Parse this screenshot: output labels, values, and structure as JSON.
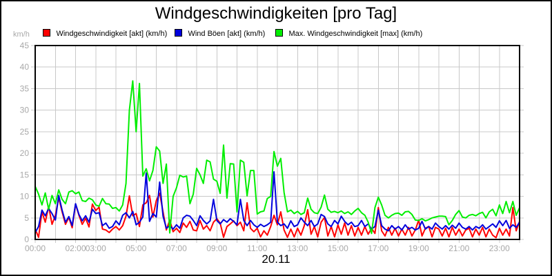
{
  "chart_data": {
    "type": "line",
    "title": "Windgeschwindigkeiten [pro Tag]",
    "ylabel": "km/h",
    "xlabel": "",
    "date_label": "20.11",
    "ylim": [
      0,
      45
    ],
    "xlim_hours": [
      0,
      24
    ],
    "grid": "on",
    "legend_position": "top",
    "sample_interval_minutes": 10,
    "y_ticks": [
      0,
      5,
      10,
      15,
      20,
      25,
      30,
      35,
      40,
      45
    ],
    "x_ticks": [
      {
        "hour": 0,
        "label": "00:00"
      },
      {
        "hour": 2,
        "label": "02:00"
      },
      {
        "hour": 3,
        "label": "03:00"
      },
      {
        "hour": 5,
        "label": "05:00"
      },
      {
        "hour": 7,
        "label": "07:00"
      },
      {
        "hour": 9,
        "label": "09:00"
      },
      {
        "hour": 11,
        "label": "11:00"
      },
      {
        "hour": 13,
        "label": "13:00"
      },
      {
        "hour": 15,
        "label": "15:00"
      },
      {
        "hour": 17,
        "label": "17:00"
      },
      {
        "hour": 19,
        "label": "19:00"
      },
      {
        "hour": 21,
        "label": "21:00"
      },
      {
        "hour": 23,
        "label": "23:00"
      }
    ],
    "colors": {
      "grid": "#c8c8c8",
      "axis_text": "#a8a8a8",
      "frame": "#000000"
    },
    "series": [
      {
        "name": "Windgeschwindigkeit [akt] (km/h)",
        "color": "#ff0000",
        "values": [
          2.4,
          0.5,
          6.4,
          4.0,
          7.7,
          3.5,
          5.6,
          9.7,
          6.4,
          3.5,
          5.1,
          2.7,
          8.2,
          5.6,
          3.5,
          4.9,
          2.9,
          8.2,
          6.7,
          7.5,
          2.4,
          2.2,
          1.6,
          2.4,
          3.0,
          2.2,
          3.2,
          5.4,
          10.1,
          5.5,
          6.0,
          3.0,
          8.0,
          8.5,
          10.2,
          5.2,
          9.0,
          10.7,
          6.4,
          2.2,
          4.5,
          1.8,
          2.6,
          1.6,
          3.8,
          2.8,
          4.2,
          2.2,
          2.0,
          4.4,
          2.4,
          3.2,
          2.0,
          4.0,
          4.8,
          3.8,
          0.5,
          3.0,
          3.6,
          4.3,
          3.2,
          4.0,
          2.0,
          8.5,
          2.6,
          1.8,
          2.6,
          0.6,
          2.0,
          1.0,
          3.0,
          5.6,
          3.4,
          6.4,
          2.2,
          0.5,
          2.4,
          0.6,
          2.6,
          1.0,
          3.2,
          6.9,
          1.2,
          3.0,
          0.6,
          4.0,
          5.1,
          0.8,
          3.0,
          0.6,
          3.4,
          1.2,
          3.8,
          1.0,
          3.2,
          0.8,
          2.8,
          1.0,
          3.0,
          1.2,
          2.6,
          1.4,
          7.4,
          2.0,
          0.8,
          2.8,
          1.0,
          2.6,
          0.8,
          2.4,
          1.0,
          2.8,
          0.8,
          2.2,
          4.5,
          0.8,
          2.6,
          3.0,
          0.6,
          2.8,
          2.4,
          0.8,
          2.6,
          0.6,
          2.8,
          1.0,
          2.4,
          0.8,
          2.2,
          2.6,
          0.6,
          2.4,
          1.0,
          2.8,
          0.6,
          2.4,
          1.0,
          0.4,
          2.6,
          1.0,
          2.4,
          0.8,
          7.4,
          2.0,
          4.2
        ]
      },
      {
        "name": "Wind Böen [akt] (km/h)",
        "color": "#0000dd",
        "values": [
          1.6,
          3.0,
          6.8,
          5.5,
          7.2,
          6.0,
          4.5,
          10.2,
          6.8,
          4.0,
          5.3,
          3.2,
          8.3,
          5.8,
          4.3,
          5.5,
          4.0,
          7.0,
          6.0,
          6.2,
          3.2,
          3.8,
          2.6,
          3.0,
          4.3,
          3.4,
          5.6,
          6.2,
          5.0,
          6.5,
          3.4,
          4.0,
          5.2,
          15.4,
          4.2,
          6.0,
          5.2,
          13.3,
          5.4,
          2.6,
          3.2,
          2.4,
          3.4,
          2.6,
          5.0,
          5.6,
          5.4,
          4.4,
          3.2,
          5.5,
          4.4,
          3.6,
          4.3,
          9.3,
          4.4,
          3.6,
          4.6,
          4.0,
          4.8,
          4.2,
          3.4,
          9.3,
          4.4,
          3.2,
          4.4,
          3.4,
          2.8,
          3.5,
          3.0,
          3.4,
          4.0,
          15.7,
          4.0,
          3.2,
          3.6,
          2.6,
          4.3,
          3.0,
          3.4,
          5.0,
          4.0,
          3.2,
          4.4,
          3.0,
          3.6,
          5.8,
          5.3,
          3.6,
          3.0,
          4.4,
          3.6,
          5.4,
          4.2,
          3.4,
          4.0,
          3.0,
          3.2,
          4.4,
          3.0,
          3.6,
          2.4,
          3.0,
          6.8,
          3.2,
          2.4,
          2.0,
          3.2,
          2.4,
          3.0,
          2.2,
          3.4,
          2.4,
          2.8,
          2.2,
          2.6,
          4.2,
          2.4,
          3.0,
          2.4,
          3.8,
          3.0,
          2.4,
          3.2,
          2.4,
          3.3,
          2.6,
          3.8,
          2.8,
          2.4,
          3.0,
          2.2,
          3.0,
          2.6,
          3.4,
          2.4,
          3.0,
          3.6,
          2.8,
          4.3,
          3.2,
          4.4,
          2.6,
          3.4,
          2.8,
          4.0
        ]
      },
      {
        "name": "Max. Windgeschwindigkeit [max] (km/h)",
        "color": "#00ee00",
        "values": [
          12.3,
          10.5,
          8.0,
          10.8,
          7.0,
          10.2,
          8.3,
          11.5,
          9.3,
          8.3,
          11.0,
          11.3,
          10.6,
          11.0,
          9.0,
          8.8,
          9.6,
          9.2,
          8.0,
          7.7,
          9.5,
          8.3,
          8.2,
          7.2,
          7.4,
          6.6,
          8.0,
          13.0,
          30.0,
          36.8,
          25.0,
          36.2,
          14.7,
          16.4,
          13.6,
          16.0,
          21.5,
          20.5,
          13.0,
          17.5,
          1.5,
          10.0,
          12.0,
          14.9,
          14.5,
          14.7,
          8.3,
          10.5,
          16.5,
          15.0,
          13.0,
          18.4,
          18.0,
          14.0,
          13.5,
          10.7,
          21.9,
          9.6,
          17.6,
          17.5,
          6.4,
          18.4,
          17.9,
          10.1,
          16.0,
          16.0,
          5.9,
          6.4,
          6.6,
          9.5,
          10.0,
          20.4,
          17.0,
          18.8,
          10.9,
          6.4,
          6.8,
          6.0,
          6.5,
          5.8,
          6.2,
          9.6,
          7.0,
          6.2,
          6.0,
          7.5,
          10.3,
          7.0,
          6.3,
          6.5,
          6.2,
          6.6,
          6.0,
          6.4,
          5.8,
          6.6,
          7.2,
          6.2,
          5.6,
          4.0,
          1.4,
          7.4,
          9.8,
          8.0,
          5.6,
          5.0,
          5.6,
          6.0,
          6.1,
          5.6,
          6.4,
          6.5,
          5.8,
          4.5,
          4.4,
          4.8,
          4.3,
          4.6,
          5.0,
          5.2,
          5.4,
          5.4,
          5.3,
          3.4,
          4.4,
          5.8,
          6.7,
          5.2,
          5.0,
          5.6,
          5.8,
          5.5,
          6.0,
          6.3,
          5.0,
          6.4,
          7.0,
          5.5,
          8.0,
          6.0,
          8.8,
          6.2,
          8.8,
          5.6,
          7.4
        ]
      }
    ]
  }
}
